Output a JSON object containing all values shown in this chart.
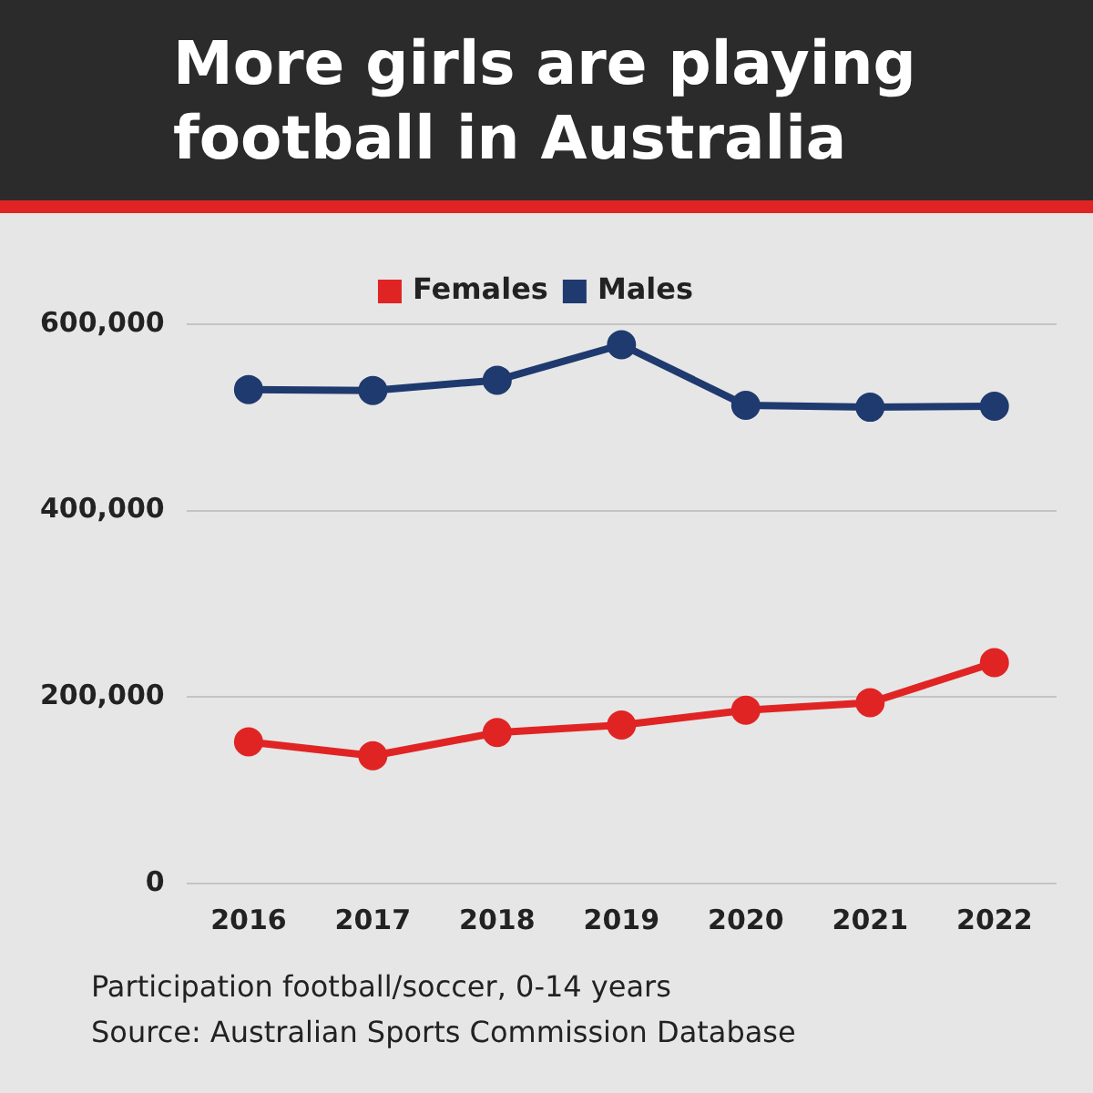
{
  "chart_data": {
    "type": "line",
    "title": "More girls are playing football in Australia",
    "categories": [
      "2016",
      "2017",
      "2018",
      "2019",
      "2020",
      "2021",
      "2022"
    ],
    "series": [
      {
        "name": "Females",
        "color": "#e02424",
        "values": [
          152000,
          137000,
          162000,
          170000,
          186000,
          194000,
          237000
        ]
      },
      {
        "name": "Males",
        "color": "#1f3a6e",
        "values": [
          530000,
          529000,
          540000,
          578000,
          513000,
          511000,
          512000
        ]
      }
    ],
    "ylim": [
      0,
      600000
    ],
    "yticks": [
      0,
      {
        "value": 200000,
        "label": "200,000"
      },
      {
        "value": 400000,
        "label": "400,000"
      },
      {
        "value": 600000,
        "label": "600,000"
      }
    ],
    "grid": "y",
    "legend": "top",
    "marker": "circle",
    "line_style": "solid",
    "annotations": [
      "Participation football/soccer, 0-14 years",
      "Source: Australian Sports Commission Database"
    ]
  }
}
